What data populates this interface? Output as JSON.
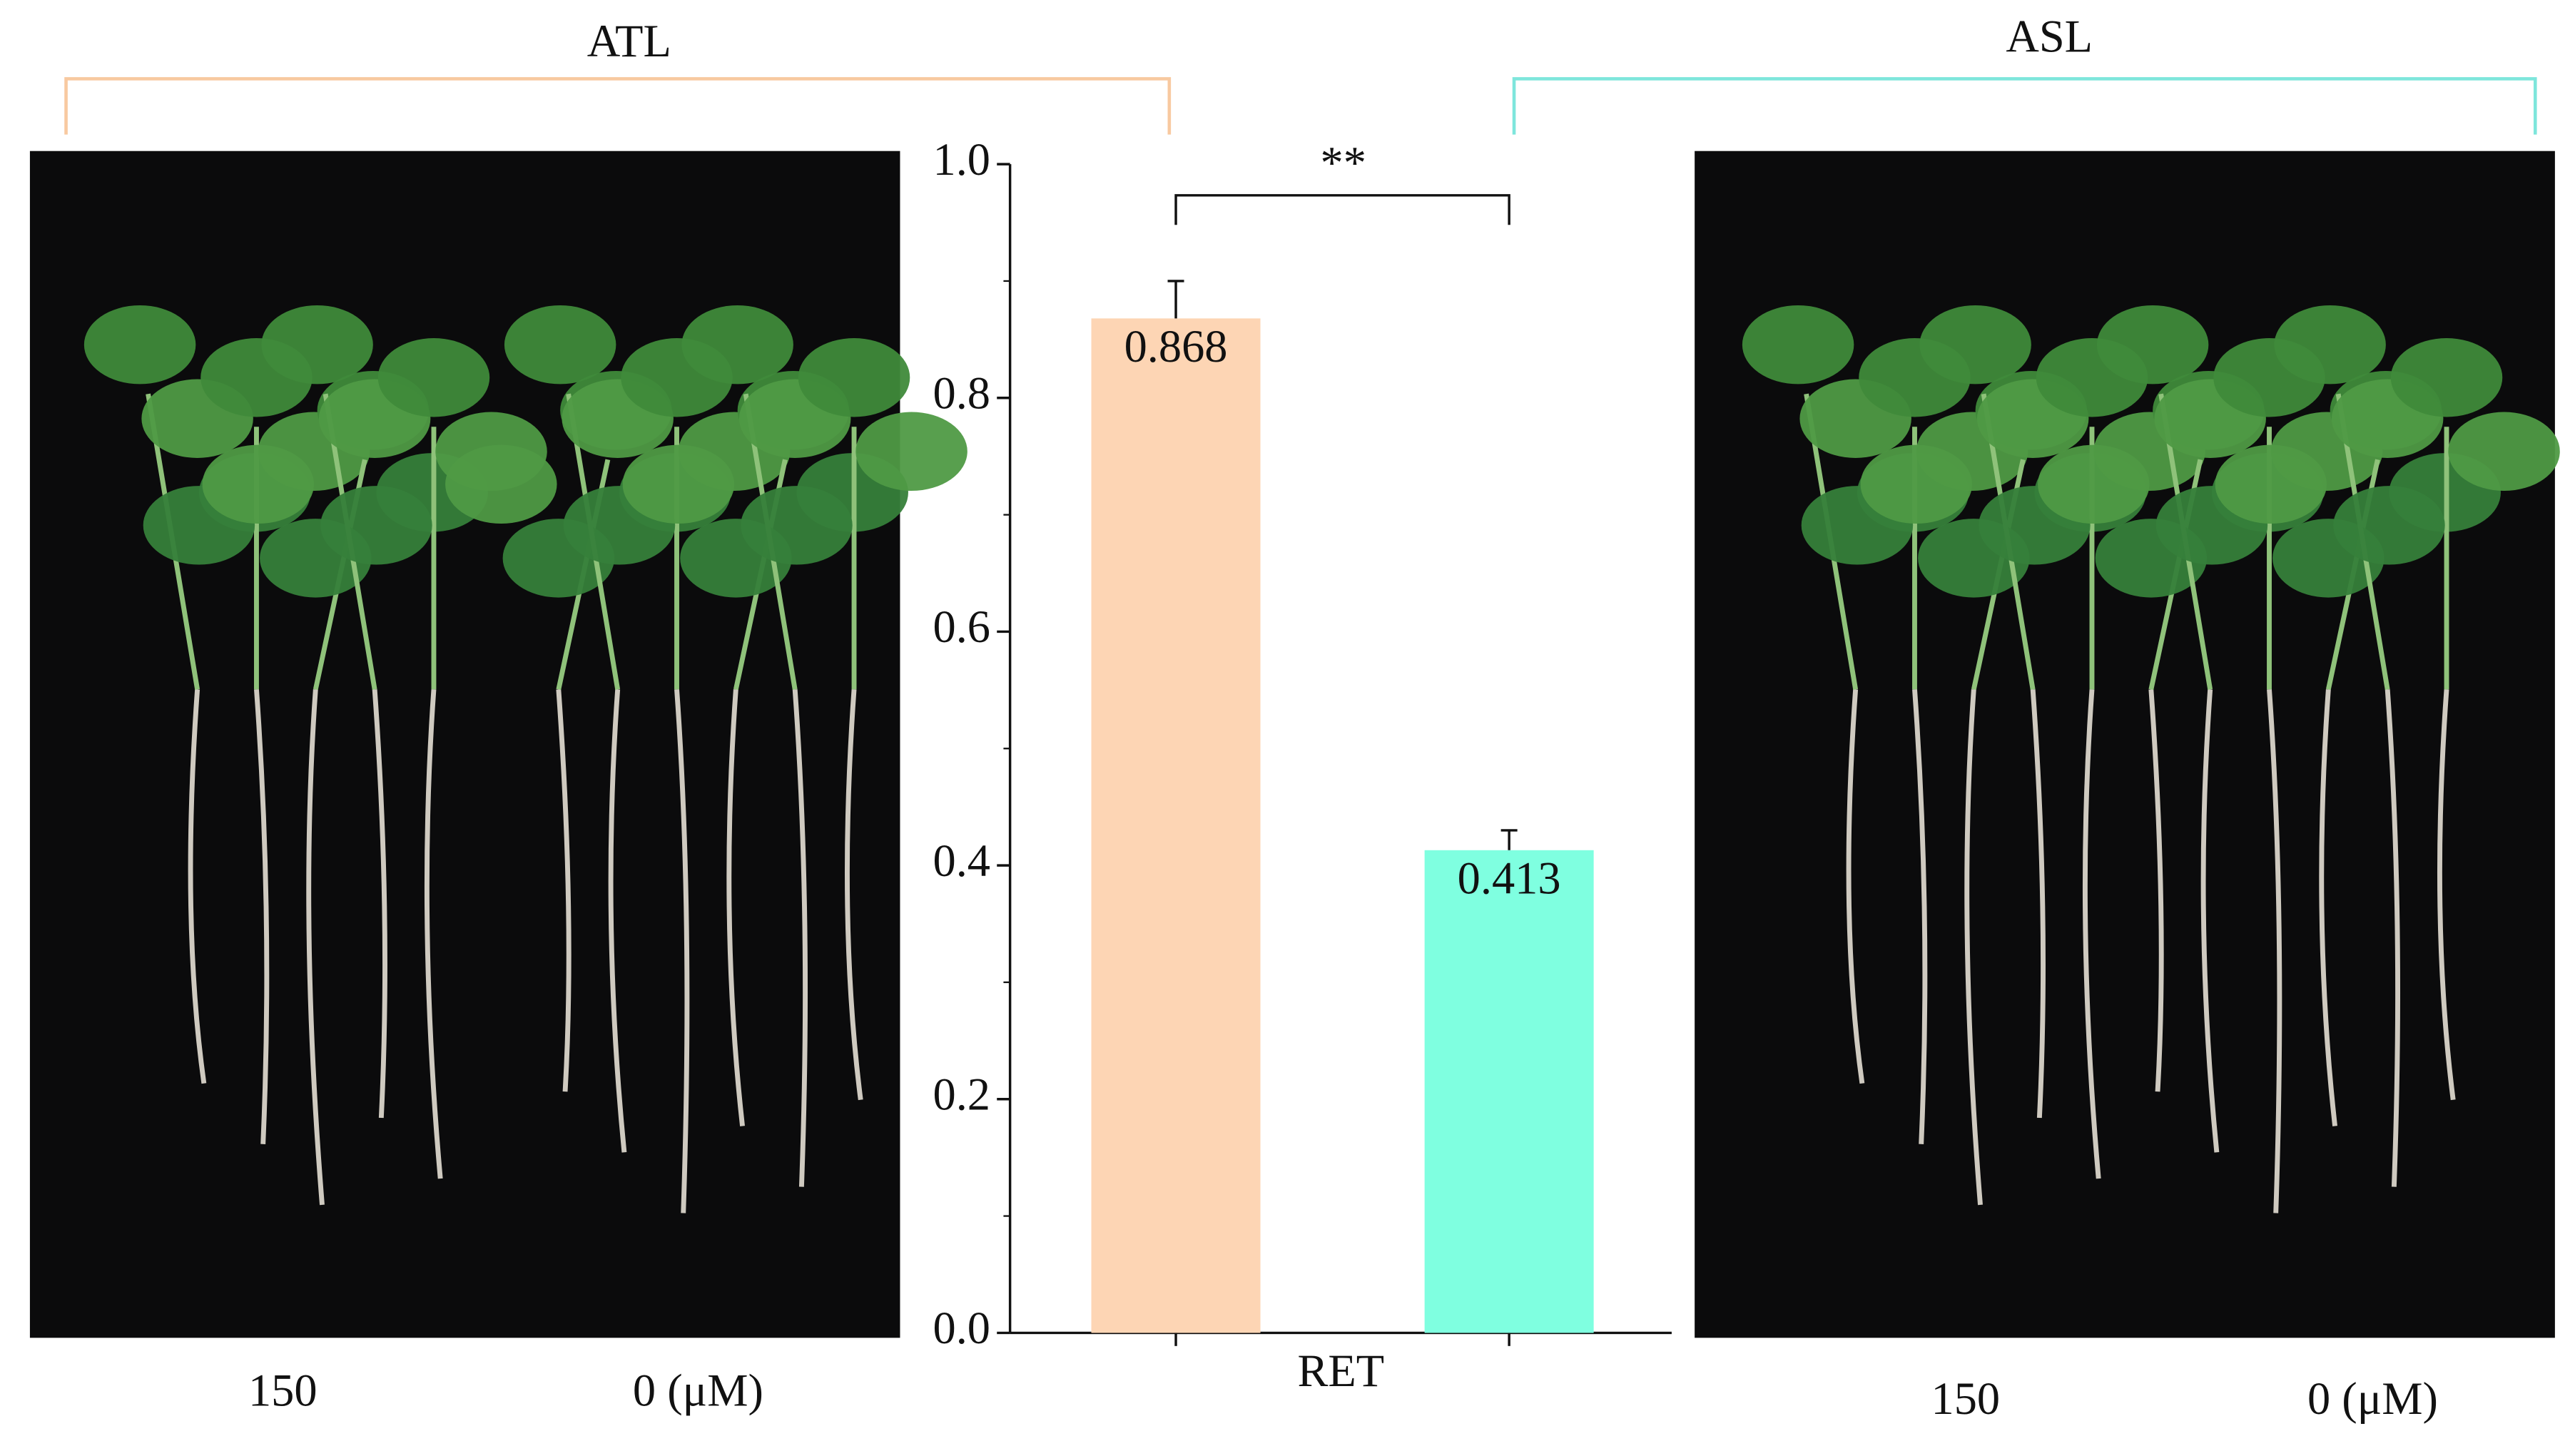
{
  "groups": [
    {
      "label": "ATL",
      "color": "#f8c9a0",
      "photo_labels": [
        "150",
        "0 (μM)"
      ]
    },
    {
      "label": "ASL",
      "color": "#7ee6dc",
      "photo_labels": [
        "150",
        "0 (μM)"
      ]
    }
  ],
  "chart_data": {
    "type": "bar",
    "categories": [
      "RET"
    ],
    "series": [
      {
        "color": "#fdd5b4",
        "values": [
          0.868
        ],
        "errors": [
          0.032
        ]
      },
      {
        "color": "#7fffe0",
        "values": [
          0.413
        ],
        "errors": [
          0.017
        ]
      }
    ],
    "ylim": [
      0,
      1
    ],
    "yticks": [
      {
        "value": 0,
        "label": "0.0"
      },
      0.2,
      0.4,
      0.6,
      0.8,
      {
        "value": 1,
        "label": "1.0"
      }
    ],
    "significance": "**"
  }
}
